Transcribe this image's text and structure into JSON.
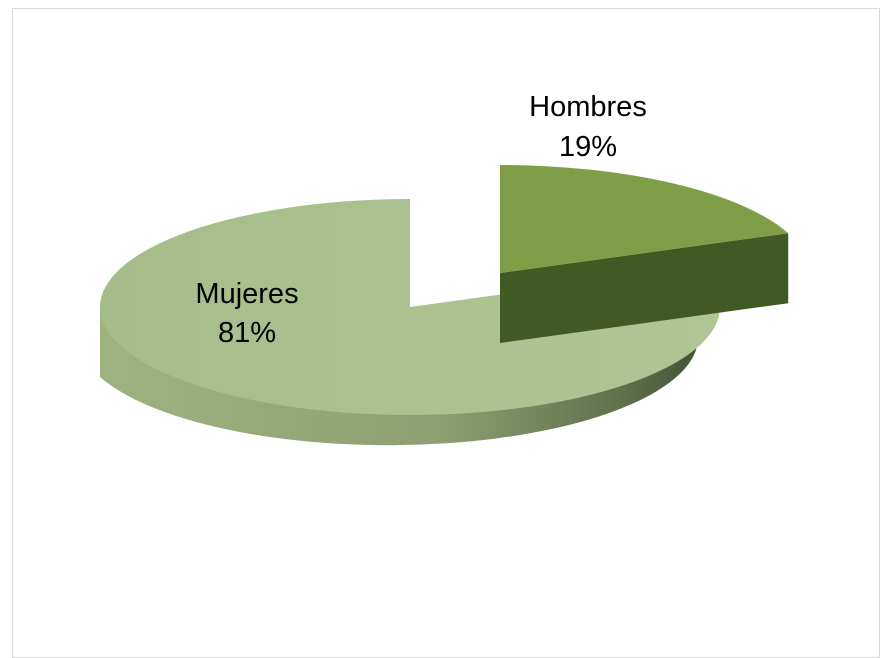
{
  "chart_data": {
    "type": "pie",
    "style": "3d-exploded",
    "title": "",
    "slices": [
      {
        "name": "Hombres",
        "value": 19,
        "percent_label": "19%",
        "color": "#7e9e48",
        "side_color": "#3f5a22"
      },
      {
        "name": "Mujeres",
        "value": 81,
        "percent_label": "81%",
        "color": "#a9bf8c",
        "side_color": "#8a9e70"
      }
    ],
    "legend": "none",
    "data_labels": "category-and-percent"
  }
}
